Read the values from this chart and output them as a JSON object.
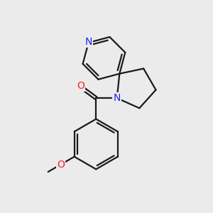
{
  "bg_color": "#ebebeb",
  "bond_color": "#1a1a1a",
  "bond_width": 1.6,
  "atom_colors": {
    "N": "#2020ff",
    "O": "#ff2020",
    "C": "#1a1a1a"
  },
  "font_size_atom": 10,
  "fig_size": [
    3.0,
    3.0
  ],
  "dpi": 100
}
